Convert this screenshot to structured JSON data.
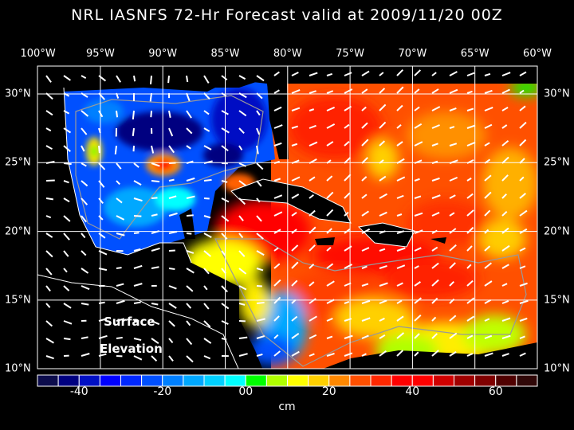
{
  "title": "NRL IASNFS  72-Hr Forecast valid at 2009/11/20 00Z",
  "lon_labels": [
    "100°W",
    "95°W",
    "90°W",
    "85°W",
    "80°W",
    "75°W",
    "70°W",
    "65°W",
    "60°W"
  ],
  "lat_labels": [
    "30°N",
    "25°N",
    "20°N",
    "15°N",
    "10°N"
  ],
  "annotation": {
    "line1": "Surface",
    "line2": "Elevation"
  },
  "colorbar": {
    "unit": "cm",
    "range": [
      -50,
      70
    ],
    "ticks": [
      "-40",
      "-20",
      "00",
      "20",
      "40",
      "60"
    ],
    "colors": [
      "#0c0c4c",
      "#000080",
      "#0010c4",
      "#0000ff",
      "#0028ff",
      "#0050ff",
      "#0080ff",
      "#00a8ff",
      "#00d0ff",
      "#00ffff",
      "#00ff00",
      "#b0ff00",
      "#ffff00",
      "#ffd000",
      "#ff8800",
      "#ff5000",
      "#ff2800",
      "#ff0000",
      "#ff0000",
      "#d00000",
      "#a00000",
      "#800000",
      "#500000",
      "#300808"
    ]
  },
  "map": {
    "land_color": "#000000",
    "vector_color": "#ffffff",
    "grid_color": "#ffffff"
  }
}
